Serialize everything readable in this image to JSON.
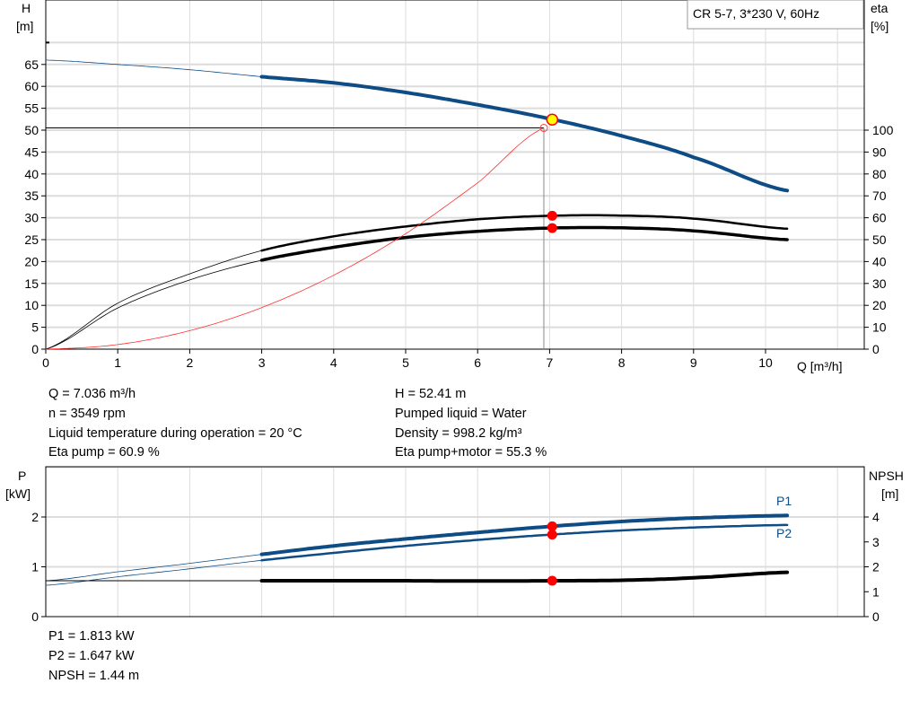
{
  "chart_data": [
    {
      "type": "line",
      "title": "CR 5-7, 3*230 V, 60Hz",
      "xlabel": "Q [m³/h]",
      "ylabel_left": [
        "H",
        "[m]"
      ],
      "ylabel_right": [
        "eta",
        "[%]"
      ],
      "xlim": [
        0,
        11.4
      ],
      "ylim_left": [
        0,
        70
      ],
      "ylim_right": [
        0,
        100
      ],
      "x_ticks": [
        "0",
        "1",
        "2",
        "3",
        "4",
        "5",
        "6",
        "7",
        "8",
        "9",
        "10"
      ],
      "y_ticks_left": [
        "0",
        "5",
        "10",
        "15",
        "20",
        "25",
        "30",
        "35",
        "40",
        "45",
        "50",
        "55",
        "60",
        "65"
      ],
      "y_ticks_right": [
        "0",
        "10",
        "20",
        "30",
        "40",
        "50",
        "60",
        "70",
        "80",
        "90",
        "100"
      ],
      "grid": true,
      "operating_range_start": 3,
      "series": [
        {
          "key": "H",
          "axis": "left",
          "color": "#0e4c86",
          "x": [
            0,
            1,
            2,
            3,
            4,
            5,
            6,
            7,
            8,
            9,
            10.3
          ],
          "y": [
            66.0,
            65.0,
            63.8,
            62.2,
            60.8,
            58.6,
            55.8,
            52.6,
            48.7,
            43.8,
            36.2
          ]
        },
        {
          "key": "eta_pump",
          "axis": "right",
          "color": "#000000",
          "x": [
            0,
            1,
            2,
            3,
            4,
            5,
            6,
            7,
            8,
            9,
            10.3
          ],
          "y": [
            0,
            21,
            34.4,
            45,
            51.5,
            56,
            59.3,
            60.9,
            61.0,
            59.6,
            55
          ]
        },
        {
          "key": "eta_pump_motor",
          "axis": "right",
          "color": "#000000",
          "x": [
            0,
            1,
            2,
            3,
            4,
            5,
            6,
            7,
            8,
            9,
            10.3
          ],
          "y": [
            0,
            18.8,
            31.6,
            40.6,
            46.5,
            51,
            53.8,
            55.3,
            55.4,
            54,
            50
          ]
        },
        {
          "key": "system_curve",
          "axis": "left",
          "color": "#ff3030",
          "x": [
            0,
            1,
            2,
            3,
            4,
            5,
            6,
            6.92
          ],
          "y": [
            0,
            1.05,
            4.22,
            9.49,
            16.87,
            26.36,
            37.96,
            50.5
          ]
        }
      ],
      "duty_point": {
        "Q": 7.036,
        "H": 52.41,
        "eta_pump": 60.9,
        "eta_pump_motor": 55.3
      },
      "requested_point": {
        "Q": 6.92,
        "H": 50.5
      }
    },
    {
      "type": "line",
      "xlim": [
        0,
        11.4
      ],
      "ylabel_left": [
        "P",
        "[kW]"
      ],
      "ylabel_right": [
        "NPSH",
        "[m]"
      ],
      "ylim_left": [
        0,
        3
      ],
      "ylim_right": [
        0,
        6
      ],
      "y_ticks_left": [
        "0",
        "1",
        "2"
      ],
      "y_ticks_right": [
        "0",
        "1",
        "2",
        "3",
        "4"
      ],
      "grid": true,
      "operating_range_start": 3,
      "series": [
        {
          "name": "P1",
          "axis": "left",
          "color": "#0e4c86",
          "x": [
            0,
            1,
            2,
            3,
            4,
            5,
            6,
            7,
            8,
            9,
            10.3
          ],
          "y": [
            0.72,
            0.9,
            1.07,
            1.25,
            1.42,
            1.56,
            1.69,
            1.81,
            1.91,
            1.98,
            2.03
          ]
        },
        {
          "name": "P2",
          "axis": "left",
          "color": "#0e4c86",
          "x": [
            0,
            1,
            2,
            3,
            4,
            5,
            6,
            7,
            8,
            9,
            10.3
          ],
          "y": [
            0.63,
            0.8,
            0.96,
            1.13,
            1.28,
            1.42,
            1.54,
            1.645,
            1.73,
            1.79,
            1.84
          ]
        },
        {
          "key": "NPSH",
          "axis": "right",
          "color": "#000000",
          "x": [
            0,
            3,
            4,
            5,
            6,
            7,
            8,
            9,
            10.3
          ],
          "y": [
            1.44,
            1.44,
            1.44,
            1.44,
            1.43,
            1.44,
            1.46,
            1.56,
            1.78
          ]
        }
      ],
      "duty_point": {
        "Q": 7.036,
        "P1": 1.813,
        "P2": 1.647,
        "NPSH": 1.44
      }
    }
  ],
  "info": {
    "left": [
      "Q = 7.036 m³/h",
      "n = 3549 rpm",
      "Liquid temperature during operation = 20 °C",
      "Eta pump = 60.9 %"
    ],
    "right": [
      "H = 52.41 m",
      "Pumped liquid = Water",
      "Density = 998.2 kg/m³",
      "Eta pump+motor = 55.3 %"
    ],
    "bottom": [
      "P1 = 1.813 kW",
      "P2 = 1.647 kW",
      "NPSH = 1.44 m"
    ]
  },
  "colors": {
    "curve_blue": "#0e4c86",
    "duty_red": "#ff0000",
    "duty_yellow": "#ffff00",
    "grid": "#dcdcdc"
  }
}
